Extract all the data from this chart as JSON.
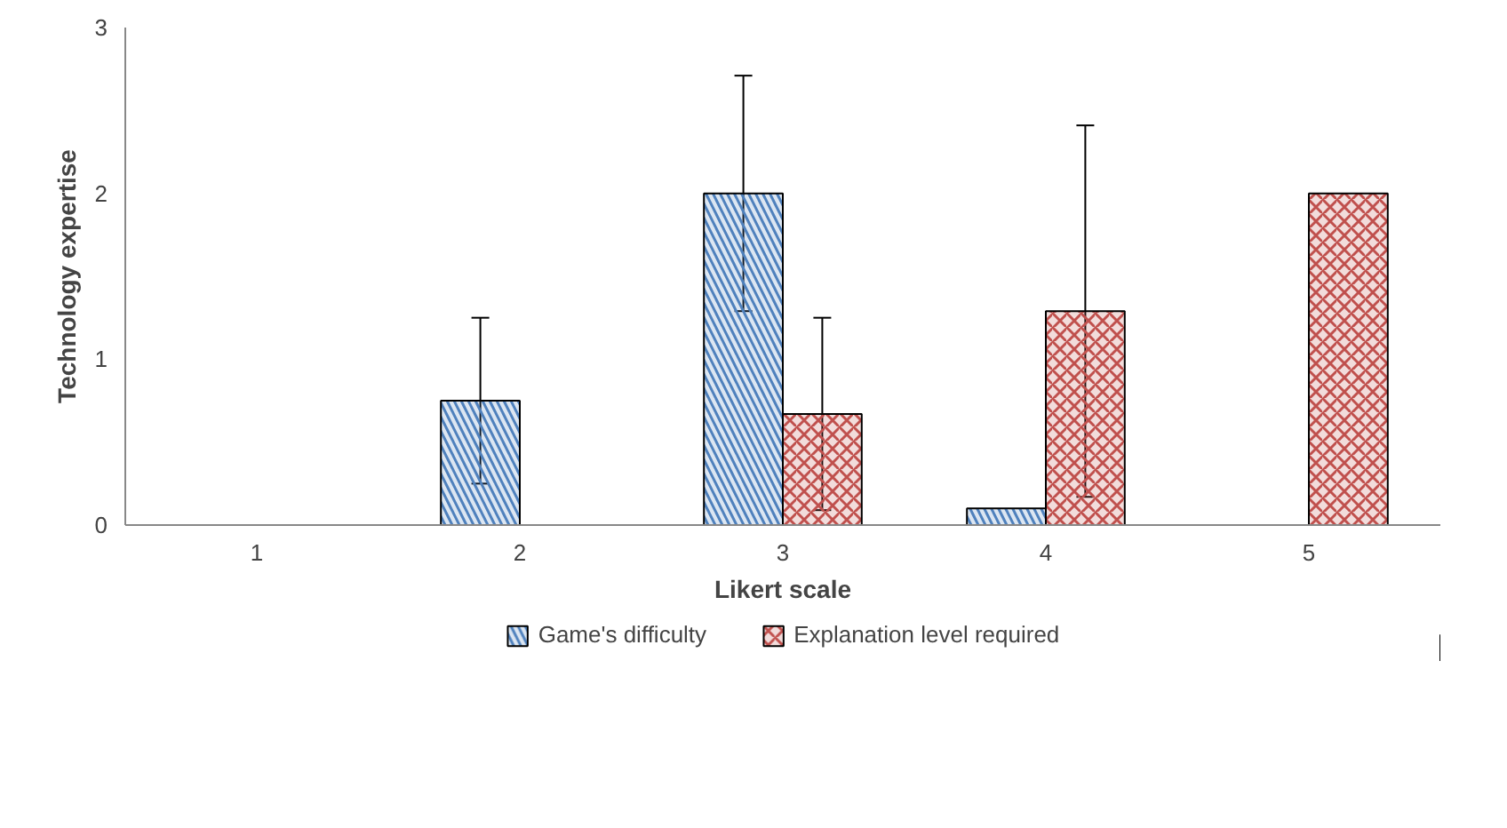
{
  "chart_data": {
    "type": "bar",
    "xlabel": "Likert scale",
    "ylabel": "Technology expertise",
    "categories": [
      "1",
      "2",
      "3",
      "4",
      "5"
    ],
    "series": [
      {
        "name": "Game's difficulty",
        "color": "#4f81bd",
        "values": [
          null,
          0.75,
          2,
          0.1,
          null
        ],
        "errors": [
          null,
          0.5,
          0.71,
          null,
          null
        ]
      },
      {
        "name": "Explanation level required",
        "color": "#c0504d",
        "values": [
          null,
          null,
          0.67,
          1.29,
          2
        ],
        "errors": [
          null,
          null,
          0.58,
          1.12,
          null
        ]
      }
    ],
    "ylim": [
      0,
      3
    ],
    "yticks": [
      0,
      1,
      2,
      3
    ],
    "grid": false,
    "legend": "bottom"
  }
}
